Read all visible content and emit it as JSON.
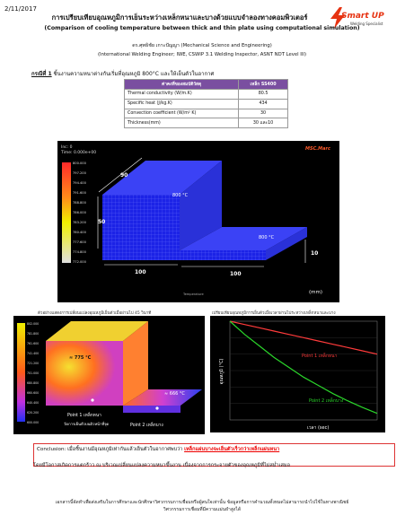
{
  "date": "2/11/2017",
  "logo": {
    "brand": "Smart UP",
    "tagline": "Welding Specialist"
  },
  "title_th": "การเปรียบเทียบอุณหภูมิการเย็นระหว่างเหล็กหนาและบางด้วยแบบจำลองทางคอมพิวเตอร์",
  "title_en": "(Comparison of cooling temperature between thick and thin plate using computational simulation)",
  "author": "ดร.ศุทธิชัย เกาะปัญญา (Mechanical Science and Engineering)",
  "credentials": "(International Welding Engineer; IWE, CSWIP 3.1 Welding Inspector, ASNT NDT Level III)",
  "case": {
    "label": "กรณีที่ 1",
    "text": " ชิ้นงานความหนาต่างกันเริ่มที่อุณหภูมิ 800°C และให้เย็นตัวในอากาศ"
  },
  "table": {
    "headers": [
      "ค่าคงที่ของสมบัติวัสดุ",
      "เหล็ก SS400"
    ],
    "rows": [
      [
        "Thermal conductivity (W/m.K)",
        "80.5"
      ],
      [
        "Specific heat (J/kg.K)",
        "434"
      ],
      [
        "Convection coefficient (W/m² K)",
        "30"
      ],
      [
        "Thickness(mm)",
        "30 และ10"
      ]
    ]
  },
  "fem1": {
    "header": [
      "Inc: 0",
      "Time: 0.000e+00"
    ],
    "legend": [
      "800.000",
      "797.200",
      "794.400",
      "791.600",
      "788.800",
      "786.000",
      "783.200",
      "780.400",
      "777.600",
      "774.800",
      "772.000"
    ],
    "dims": [
      "90",
      "50",
      "100",
      "100",
      "10"
    ],
    "unit": "(mm)",
    "labels": [
      "800 °C",
      "800 °C"
    ],
    "footer": "Temperature",
    "watermark": "MSC.Marc"
  },
  "cap_left": "ตัวอย่างแสดงการเปลี่ยนแปลงอุณหภูมิเย็นตัวเมื่อผ่านไป 45 วินาที",
  "cap_right": "เปรียบเทียบอุณหภูมิการเย็นตัวเมื่อเวลาผ่านไประหว่างเหล็กหนาและบาง",
  "fem2": {
    "legend": [
      "802.000",
      "781.800",
      "761.600",
      "741.400",
      "721.200",
      "701.000",
      "680.800",
      "660.600",
      "640.400",
      "620.200",
      "600.000"
    ],
    "labels": [
      "≈ 775 °C",
      "≈ 666 °C"
    ],
    "point1": "Point 1 เหล็กหนา",
    "point2": "Point 2 เหล็กบาง",
    "scale": "วัดการเย็นตัวบนผิวหน้าที่จุด"
  },
  "chart_data": {
    "type": "line",
    "xlabel": "เวลา (sec)",
    "ylabel": "อุณหภูมิ (°C)",
    "series": [
      {
        "name": "Point 1 เหล็กหนา",
        "color": "#ff3b3b",
        "x": [
          0,
          10,
          20,
          30,
          40,
          50,
          60,
          70,
          80,
          90,
          100
        ],
        "y": [
          800,
          790,
          780,
          770,
          760,
          750,
          740,
          730,
          720,
          710,
          700
        ]
      },
      {
        "name": "Point 2 เหล็กบาง",
        "color": "#2bd62b",
        "x": [
          0,
          10,
          20,
          30,
          40,
          50,
          60,
          70,
          80,
          90,
          100
        ],
        "y": [
          800,
          760,
          725,
          690,
          660,
          630,
          605,
          580,
          558,
          538,
          520
        ]
      }
    ],
    "xlim": [
      0,
      100
    ],
    "ylim": [
      500,
      800
    ]
  },
  "conclusion": {
    "lead": "Conclusion: เมื่อชิ้นงานมีอุณหภูมิเท่ากันแล้วเย็นตัวในอากาศพบว่า ",
    "highlight1": "เหล็กแผ่นบางจะเย็นตัวเร็วกว่าเหล็กแผ่นหนา",
    "line2": "โดยมีโอกาสเกิดการแตกร้าว ณ บริเวณเปลี่ยนแปลงความหนาขึ้นงาน เนื่องจากการกระจายตัวของอุณหภูมิที่ไม่สม่ำเสมอ"
  },
  "footer": {
    "line1": "เอกสารนี้จัดทำเพื่อส่งเสริมในการศึกษาและนักศึกษาวิศวกรรมการเชื่อมหรือผู้สนใจเท่านั้น ข้อมูลหรือการคำนวณทั้งหมดไม่สามารถนำไปใช้ในทางพาณิชย์",
    "line2": "วิศวกรรมการเชื่อมที่มีความแม่นยำสูงได้"
  }
}
